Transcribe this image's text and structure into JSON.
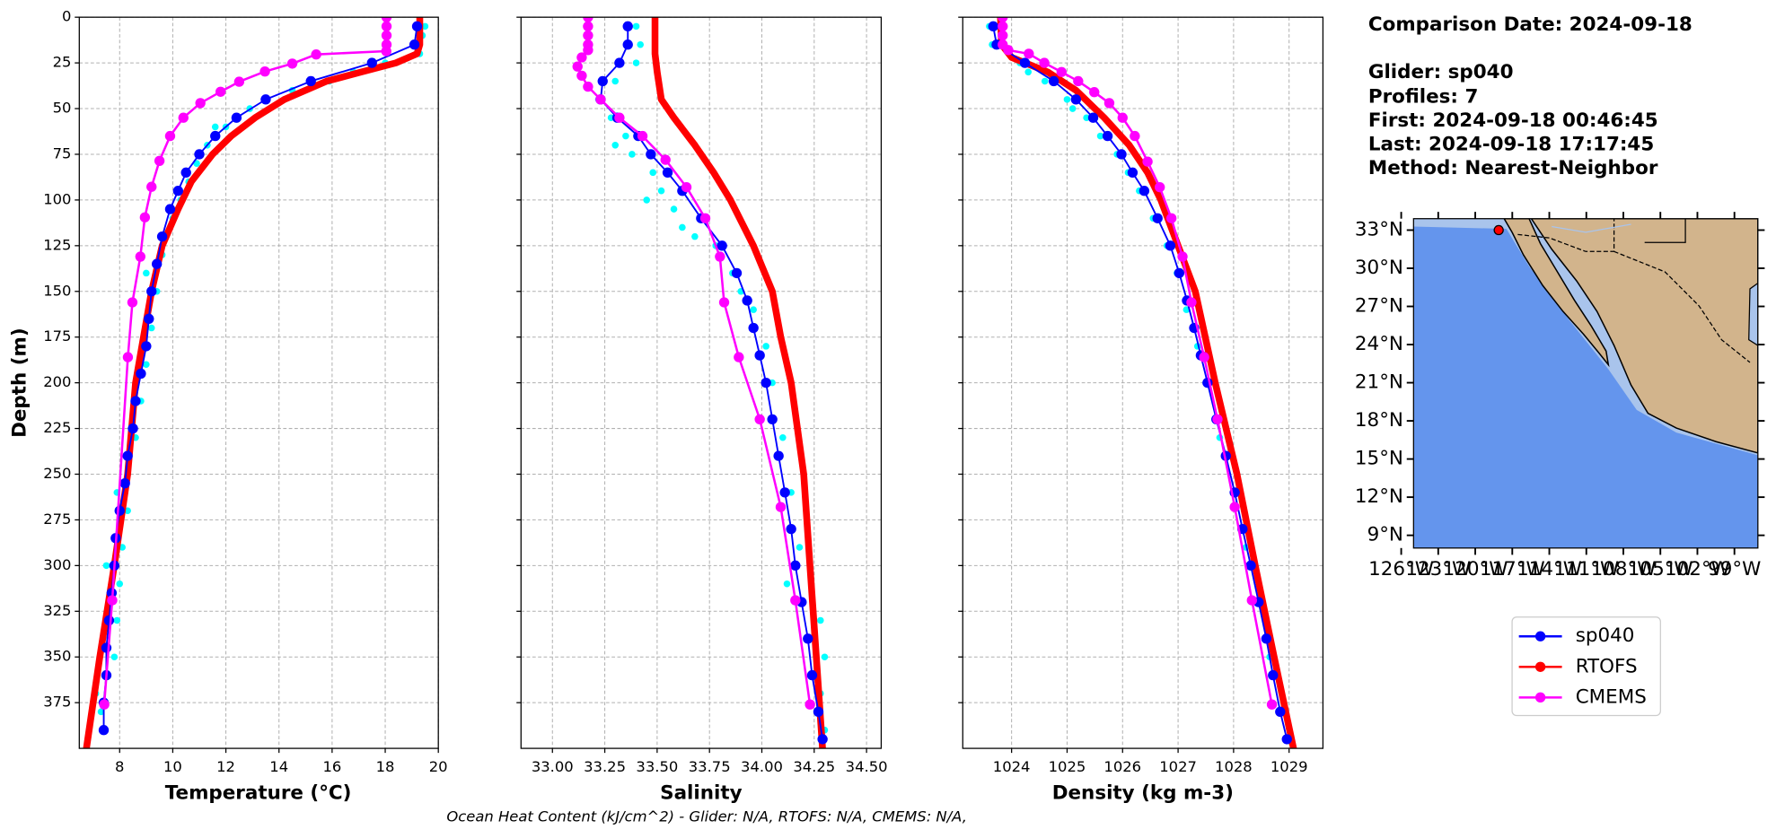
{
  "chart_data": [
    {
      "type": "line",
      "xlabel": "Temperature (°C)",
      "ylabel": "Depth (m)",
      "xlim": [
        6.48,
        20
      ],
      "xticks": [
        8,
        10,
        12,
        14,
        16,
        18,
        20
      ],
      "ylim": [
        400,
        0
      ],
      "yticks": [
        0,
        25,
        50,
        75,
        100,
        125,
        150,
        175,
        200,
        225,
        250,
        275,
        300,
        325,
        350,
        375
      ],
      "grid": true,
      "legend": true,
      "series": [
        {
          "name": "sp040",
          "color": "#0000ff",
          "linewidth": 1.5,
          "marker": true,
          "x": [
            19.2,
            19.1,
            17.5,
            15.2,
            13.5,
            12.4,
            11.6,
            11.0,
            10.5,
            10.2,
            9.9,
            9.6,
            9.4,
            9.2,
            9.1,
            9.0,
            8.8,
            8.6,
            8.5,
            8.3,
            8.2,
            8.0,
            7.85,
            7.8,
            7.7,
            7.6,
            7.5,
            7.5,
            7.4,
            7.4
          ],
          "y": [
            5,
            15,
            25,
            35,
            45,
            55,
            65,
            75,
            85,
            95,
            105,
            120,
            135,
            150,
            165,
            180,
            195,
            210,
            225,
            240,
            255,
            270,
            285,
            300,
            315,
            330,
            345,
            360,
            375,
            390
          ]
        },
        {
          "name": "RTOFS",
          "color": "#ff0000",
          "linewidth": 6,
          "marker": false,
          "x": [
            19.3,
            19.3,
            19.2,
            18.4,
            17.1,
            15.8,
            14.2,
            13.1,
            12.2,
            11.5,
            10.7,
            10.2,
            9.6,
            9.2,
            8.9,
            8.6,
            8.3,
            7.8,
            7.25,
            6.75
          ],
          "y": [
            0,
            15,
            20,
            25,
            30,
            35,
            45,
            55,
            65,
            75,
            90,
            105,
            125,
            150,
            175,
            200,
            250,
            300,
            350,
            400
          ]
        },
        {
          "name": "CMEMS",
          "color": "#ff00ff",
          "linewidth": 2,
          "marker": true,
          "x": [
            18.05,
            18.05,
            18.05,
            18.05,
            18.04,
            15.4,
            14.5,
            13.47,
            12.5,
            11.8,
            11.04,
            10.4,
            9.9,
            9.5,
            9.2,
            8.95,
            8.78,
            8.48,
            8.31,
            7.72,
            7.42
          ],
          "y": [
            0,
            5,
            10,
            15,
            18.6,
            20.4,
            25.4,
            29.7,
            35.3,
            40.8,
            47,
            55,
            65,
            78.6,
            92.8,
            109.5,
            131,
            156,
            186,
            319,
            376
          ]
        },
        {
          "color": "#00ffff",
          "linewidth": 0,
          "marker": true,
          "x": [
            19.5,
            19.4,
            19.3,
            18.0,
            16.8,
            15.9,
            14.5,
            14.2,
            12.9,
            12.0,
            11.6,
            11.3,
            10.9,
            10.6,
            10.3,
            10.0,
            9.6,
            9.0,
            9.4,
            9.2,
            9.0,
            8.8,
            8.6,
            8.3,
            7.9,
            8.3,
            8.1,
            7.5,
            8.0,
            7.9,
            7.8,
            7.1,
            7.3
          ],
          "y": [
            5,
            10,
            20,
            25,
            30,
            35,
            40,
            45,
            50,
            60,
            60,
            70,
            80,
            90,
            100,
            110,
            130,
            140,
            150,
            170,
            190,
            210,
            230,
            250,
            260,
            270,
            290,
            300,
            310,
            330,
            350,
            370,
            380
          ]
        }
      ]
    },
    {
      "type": "line",
      "xlabel": "Salinity",
      "xlim": [
        32.85,
        34.57
      ],
      "xticks": [
        {
          "value": 33,
          "label": "33.00"
        },
        {
          "value": 33.25,
          "label": "33.25"
        },
        {
          "value": 33.5,
          "label": "33.50"
        },
        {
          "value": 33.75,
          "label": "33.75"
        },
        {
          "value": 34,
          "label": "34.00"
        },
        {
          "value": 34.25,
          "label": "34.25"
        },
        {
          "value": 34.5,
          "label": "34.50"
        }
      ],
      "grid": true,
      "series": [
        {
          "color": "#0000ff",
          "linewidth": 1.5,
          "marker": true,
          "x": [
            33.36,
            33.36,
            33.32,
            33.24,
            33.23,
            33.31,
            33.41,
            33.47,
            33.55,
            33.62,
            33.71,
            33.81,
            33.88,
            33.93,
            33.96,
            33.99,
            34.02,
            34.05,
            34.08,
            34.11,
            34.14,
            34.16,
            34.19,
            34.22,
            34.24,
            34.27,
            34.29
          ],
          "y": [
            5,
            15,
            25,
            35,
            45,
            55,
            65,
            75,
            85,
            95,
            110,
            125,
            140,
            155,
            170,
            185,
            200,
            220,
            240,
            260,
            280,
            300,
            320,
            340,
            360,
            380,
            395
          ]
        },
        {
          "color": "#ff0000",
          "linewidth": 6,
          "marker": false,
          "x": [
            33.49,
            33.49,
            33.5,
            33.52,
            33.58,
            33.68,
            33.77,
            33.85,
            33.96,
            34.05,
            34.09,
            34.14,
            34.2,
            34.23,
            34.26,
            34.29
          ],
          "y": [
            0,
            20,
            30,
            45,
            55,
            70,
            85,
            100,
            125,
            150,
            175,
            200,
            250,
            300,
            350,
            400
          ]
        },
        {
          "color": "#ff00ff",
          "linewidth": 2,
          "marker": true,
          "x": [
            33.17,
            33.17,
            33.17,
            33.17,
            33.17,
            33.14,
            33.12,
            33.14,
            33.17,
            33.23,
            33.32,
            33.43,
            33.54,
            33.64,
            33.73,
            33.8,
            33.82,
            33.89,
            33.99,
            34.09,
            34.16,
            34.23
          ],
          "y": [
            0,
            5,
            10,
            15,
            18,
            22,
            27,
            32,
            38,
            45,
            55,
            65,
            78,
            93,
            110,
            131,
            156,
            186,
            220,
            268,
            319,
            376
          ]
        },
        {
          "color": "#00ffff",
          "linewidth": 0,
          "marker": true,
          "x": [
            33.4,
            33.42,
            33.4,
            33.3,
            33.22,
            33.28,
            33.35,
            33.3,
            33.38,
            33.48,
            33.52,
            33.45,
            33.58,
            33.62,
            33.68,
            33.78,
            33.86,
            33.9,
            33.96,
            34.02,
            34.05,
            34.1,
            34.14,
            34.18,
            34.12,
            34.28,
            34.3,
            34.28,
            34.3
          ],
          "y": [
            5,
            15,
            25,
            35,
            45,
            55,
            65,
            70,
            75,
            85,
            95,
            100,
            105,
            115,
            120,
            125,
            140,
            150,
            160,
            180,
            200,
            230,
            260,
            290,
            310,
            330,
            350,
            370,
            390
          ]
        }
      ]
    },
    {
      "type": "line",
      "xlabel": "Density (kg m-3)",
      "xlim": [
        1023.12,
        1029.61
      ],
      "xticks": [
        1024,
        1025,
        1026,
        1027,
        1028,
        1029
      ],
      "grid": true,
      "series": [
        {
          "color": "#0000ff",
          "linewidth": 1.5,
          "marker": true,
          "x": [
            1023.67,
            1023.73,
            1024.24,
            1024.76,
            1025.16,
            1025.47,
            1025.73,
            1025.98,
            1026.18,
            1026.39,
            1026.63,
            1026.86,
            1027.02,
            1027.16,
            1027.29,
            1027.41,
            1027.53,
            1027.69,
            1027.86,
            1028.02,
            1028.16,
            1028.31,
            1028.45,
            1028.59,
            1028.71,
            1028.84,
            1028.96
          ],
          "y": [
            5,
            15,
            25,
            35,
            45,
            55,
            65,
            75,
            85,
            95,
            110,
            125,
            140,
            155,
            170,
            185,
            200,
            220,
            240,
            260,
            280,
            300,
            320,
            340,
            360,
            380,
            395
          ]
        },
        {
          "color": "#ff0000",
          "linewidth": 6,
          "marker": false,
          "x": [
            1023.8,
            1023.82,
            1024.0,
            1024.65,
            1025.16,
            1025.67,
            1026.12,
            1026.45,
            1026.69,
            1027.0,
            1027.31,
            1027.67,
            1028.06,
            1028.39,
            1028.73,
            1029.08
          ],
          "y": [
            0,
            15,
            22,
            30,
            40,
            55,
            70,
            85,
            100,
            125,
            150,
            200,
            250,
            300,
            350,
            400
          ]
        },
        {
          "color": "#ff00ff",
          "linewidth": 2,
          "marker": true,
          "x": [
            1023.84,
            1023.84,
            1023.84,
            1023.84,
            1023.94,
            1024.31,
            1024.59,
            1024.9,
            1025.2,
            1025.49,
            1025.76,
            1026.0,
            1026.22,
            1026.45,
            1026.67,
            1026.88,
            1027.08,
            1027.24,
            1027.47,
            1027.71,
            1028.02,
            1028.33,
            1028.69
          ],
          "y": [
            0,
            5,
            10,
            15,
            18,
            20,
            25,
            30,
            35,
            41,
            47,
            55,
            65,
            79,
            93,
            110,
            131,
            156,
            186,
            220,
            268,
            319,
            376
          ]
        },
        {
          "color": "#00ffff",
          "linewidth": 0,
          "marker": true,
          "x": [
            1023.6,
            1023.65,
            1024.15,
            1024.3,
            1024.6,
            1025.0,
            1025.1,
            1025.35,
            1025.6,
            1025.9,
            1026.1,
            1026.3,
            1026.55,
            1026.8,
            1026.98,
            1027.15,
            1027.35,
            1027.5,
            1027.75,
            1028.0,
            1028.22,
            1028.45,
            1028.65,
            1028.83
          ],
          "y": [
            5,
            15,
            25,
            30,
            35,
            45,
            50,
            55,
            65,
            75,
            85,
            95,
            110,
            125,
            140,
            160,
            180,
            200,
            230,
            260,
            290,
            320,
            350,
            380
          ]
        }
      ]
    },
    {
      "type": "map",
      "xlim": [
        -125,
        -97.1
      ],
      "ylim": [
        8,
        33.9
      ],
      "xticks": [
        {
          "value": -126,
          "label": "126°W"
        },
        {
          "value": -123,
          "label": "123°W"
        },
        {
          "value": -120,
          "label": "120°W"
        },
        {
          "value": -117,
          "label": "117°W"
        },
        {
          "value": -114,
          "label": "114°W"
        },
        {
          "value": -111,
          "label": "111°W"
        },
        {
          "value": -108,
          "label": "108°W"
        },
        {
          "value": -105,
          "label": "105°W"
        },
        {
          "value": -102,
          "label": "102°W"
        },
        {
          "value": -99,
          "label": "99°W"
        }
      ],
      "yticks": [
        {
          "value": 33,
          "label": "33°N"
        },
        {
          "value": 30,
          "label": "30°N"
        },
        {
          "value": 27,
          "label": "27°N"
        },
        {
          "value": 24,
          "label": "24°N"
        },
        {
          "value": 21,
          "label": "21°N"
        },
        {
          "value": 18,
          "label": "18°N"
        },
        {
          "value": 15,
          "label": "15°N"
        },
        {
          "value": 12,
          "label": "12°N"
        },
        {
          "value": 9,
          "label": "9°N"
        }
      ],
      "ocean_color": "#6495ed",
      "land_color": "#d2b48c",
      "markers": [
        {
          "lon": -118.1,
          "lat": 33.0,
          "color": "#ff0000"
        }
      ]
    }
  ],
  "info": [
    "Comparison Date: 2024-09-18",
    "Glider: sp040",
    "Profiles: 7",
    "First: 2024-09-18 00:46:45",
    "Last: 2024-09-18 17:17:45",
    "Method: Nearest-Neighbor"
  ],
  "footer": "Ocean Heat Content (kJ/cm^2) - Glider: N/A,  RTOFS: N/A,  CMEMS: N/A,"
}
